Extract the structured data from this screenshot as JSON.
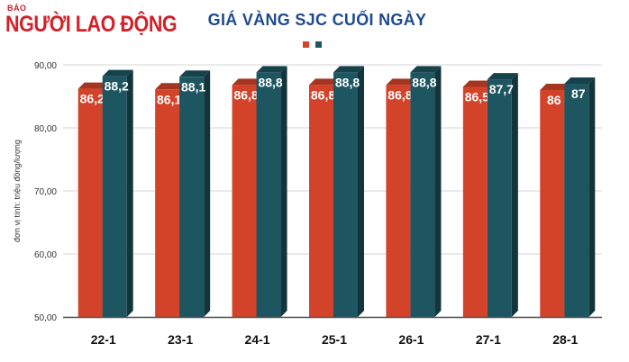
{
  "brand": {
    "small": "BÁO",
    "name": "NGƯỜI LAO ĐỘNG"
  },
  "colors": {
    "series1": "#d3432a",
    "series2": "#1d5560",
    "title": "#1f4a8c",
    "brand": "#d4202a"
  },
  "chart_data": {
    "type": "bar",
    "title": "GIÁ VÀNG SJC CUỐI NGÀY",
    "xlabel": "",
    "ylabel": "đơn vị tính: triệu đồng/lượng",
    "ylim": [
      50,
      90
    ],
    "yticks": [
      "90,00",
      "80,00",
      "70,00",
      "60,00",
      "50,00"
    ],
    "ytick_values": [
      90,
      80,
      70,
      60,
      50
    ],
    "grid": true,
    "legend": "top-center",
    "categories": [
      "22-1",
      "23-1",
      "24-1",
      "25-1",
      "26-1",
      "27-1",
      "28-1"
    ],
    "series": [
      {
        "values": [
          86.2,
          86.1,
          86.8,
          86.8,
          86.8,
          86.5,
          86
        ],
        "labels": [
          "86,2",
          "86,1",
          "86,8",
          "86,8",
          "86,8",
          "86,5",
          "86"
        ]
      },
      {
        "values": [
          88.2,
          88.1,
          88.8,
          88.8,
          88.8,
          87.7,
          87
        ],
        "labels": [
          "88,2",
          "88,1",
          "88,8",
          "88,8",
          "88,8",
          "87,7",
          "87"
        ]
      }
    ]
  }
}
